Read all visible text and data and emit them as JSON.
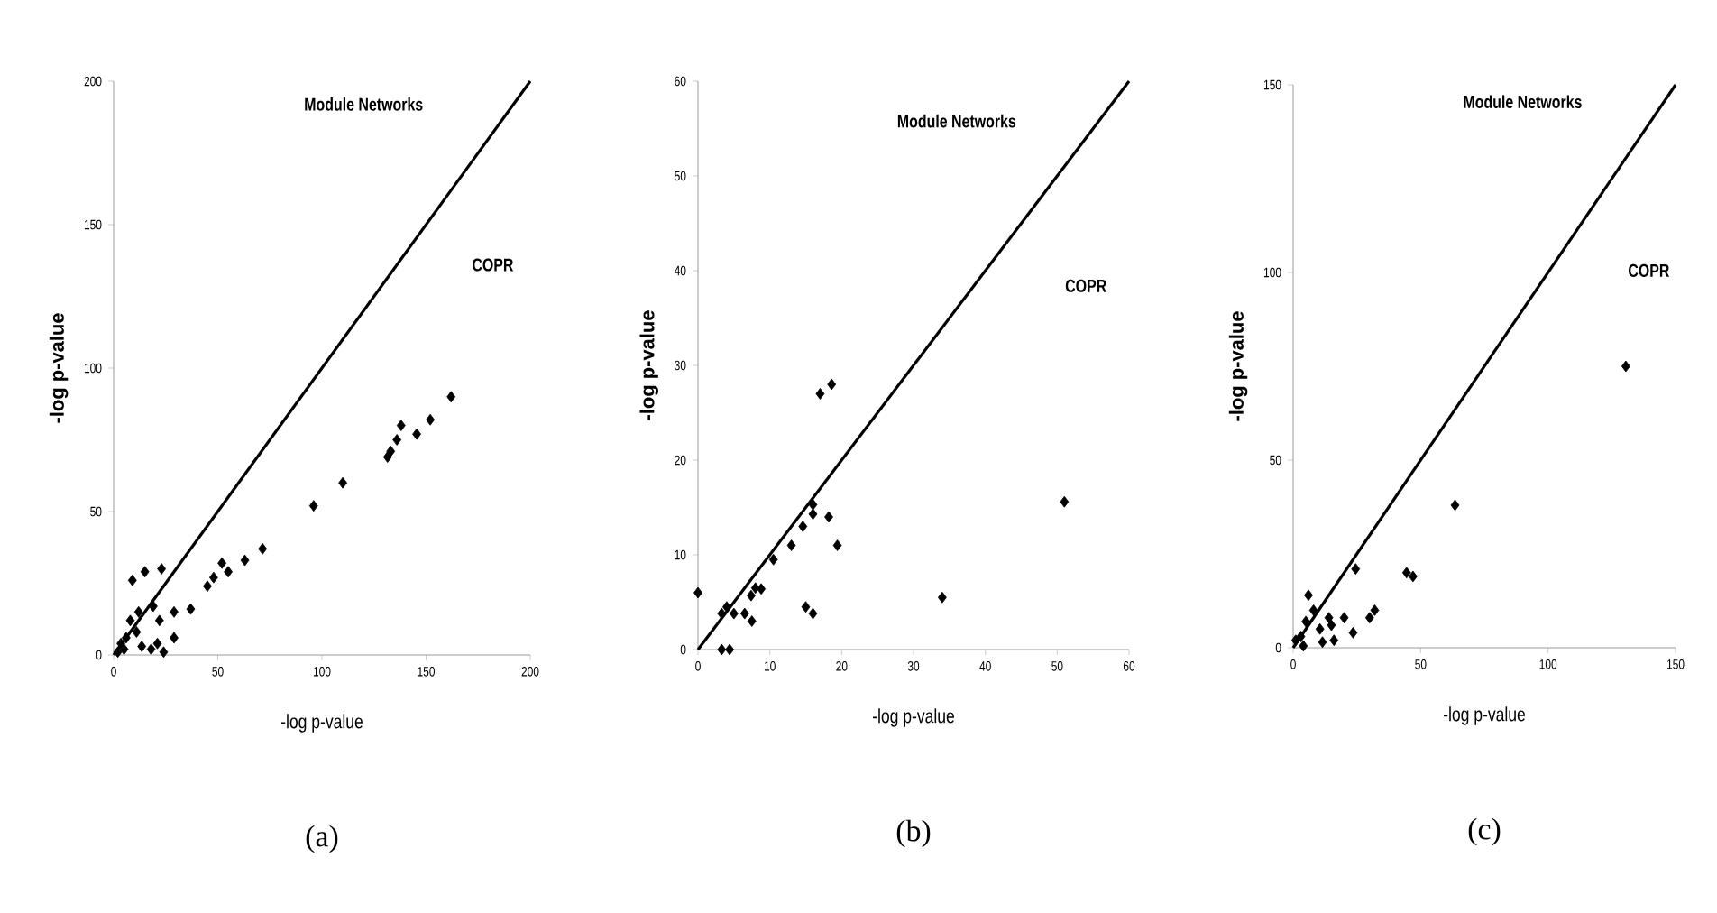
{
  "chart_data": [
    {
      "type": "scatter",
      "xlabel": "-log p-value",
      "ylabel": "-log p-value",
      "annotations": [
        "Module Networks",
        "COPR",
        "(a)"
      ],
      "xlim": [
        0,
        200
      ],
      "ylim": [
        0,
        200
      ],
      "xticks": [
        0,
        50,
        100,
        150,
        200
      ],
      "yticks": [
        0,
        50,
        100,
        150,
        200
      ],
      "series": [
        {
          "marker": "diamond",
          "color": "#000000",
          "x": [
            162,
            152,
            145.5,
            138,
            136,
            133,
            131.5,
            110,
            96,
            71.5,
            63,
            55,
            52,
            48,
            45,
            37,
            29,
            22,
            23,
            15,
            9,
            3.5,
            6,
            11,
            13.5,
            18,
            21,
            2,
            12,
            8,
            24,
            19,
            29,
            5
          ],
          "values": [
            90,
            82,
            77,
            80,
            75,
            71,
            69,
            60,
            52,
            37,
            33,
            29,
            32,
            27,
            24,
            16,
            15,
            12,
            30,
            29,
            26,
            4,
            6,
            8,
            3,
            2,
            4,
            1,
            15,
            12,
            1,
            17,
            6,
            2
          ]
        },
        {
          "type": "line",
          "marker": "none",
          "color": "#000000",
          "x": [
            0,
            200
          ],
          "values": [
            0,
            200
          ]
        }
      ]
    },
    {
      "type": "scatter",
      "xlabel": "-log p-value",
      "ylabel": "-log p-value",
      "annotations": [
        "Module Networks",
        "COPR",
        "(b)"
      ],
      "xlim": [
        0,
        60
      ],
      "ylim": [
        0,
        60
      ],
      "xticks": [
        0,
        10,
        20,
        30,
        40,
        50,
        60
      ],
      "yticks": [
        0,
        10,
        20,
        30,
        40,
        50,
        60
      ],
      "series": [
        {
          "marker": "diamond",
          "color": "#000000",
          "x": [
            0,
            51,
            34,
            18.6,
            17,
            16,
            16,
            18.2,
            19.4,
            15,
            16,
            14.6,
            13,
            10.5,
            8,
            7.5,
            6.5,
            5,
            4,
            3.3,
            3.3,
            4.4,
            7.4,
            8.8
          ],
          "values": [
            6,
            15.6,
            5.5,
            28,
            27,
            15.3,
            14.3,
            14,
            11,
            4.5,
            3.8,
            13,
            11,
            9.5,
            6.5,
            3,
            3.8,
            3.8,
            4.5,
            3.8,
            0,
            0,
            5.7,
            6.4
          ]
        },
        {
          "type": "line",
          "marker": "none",
          "color": "#000000",
          "x": [
            0,
            60
          ],
          "values": [
            0,
            60
          ]
        }
      ]
    },
    {
      "type": "scatter",
      "xlabel": "-log p-value",
      "ylabel": "-log p-value",
      "annotations": [
        "Module Networks",
        "COPR",
        "(c)"
      ],
      "xlim": [
        0,
        150
      ],
      "ylim": [
        0,
        150
      ],
      "xticks": [
        0,
        50,
        100,
        150
      ],
      "yticks": [
        0,
        50,
        100,
        150
      ],
      "series": [
        {
          "marker": "diamond",
          "color": "#000000",
          "x": [
            130.5,
            63.5,
            44.5,
            47,
            24.5,
            32,
            30,
            23.5,
            20,
            15,
            14,
            16,
            6,
            8,
            5,
            3,
            1,
            4,
            10.5,
            11.5
          ],
          "values": [
            75,
            38,
            20,
            19,
            21,
            10,
            8,
            4,
            8,
            6,
            8,
            2,
            14,
            10,
            7,
            3,
            2,
            0.5,
            5,
            1.5
          ]
        },
        {
          "type": "line",
          "marker": "none",
          "color": "#000000",
          "x": [
            0,
            150
          ],
          "values": [
            0,
            150
          ]
        }
      ]
    }
  ]
}
